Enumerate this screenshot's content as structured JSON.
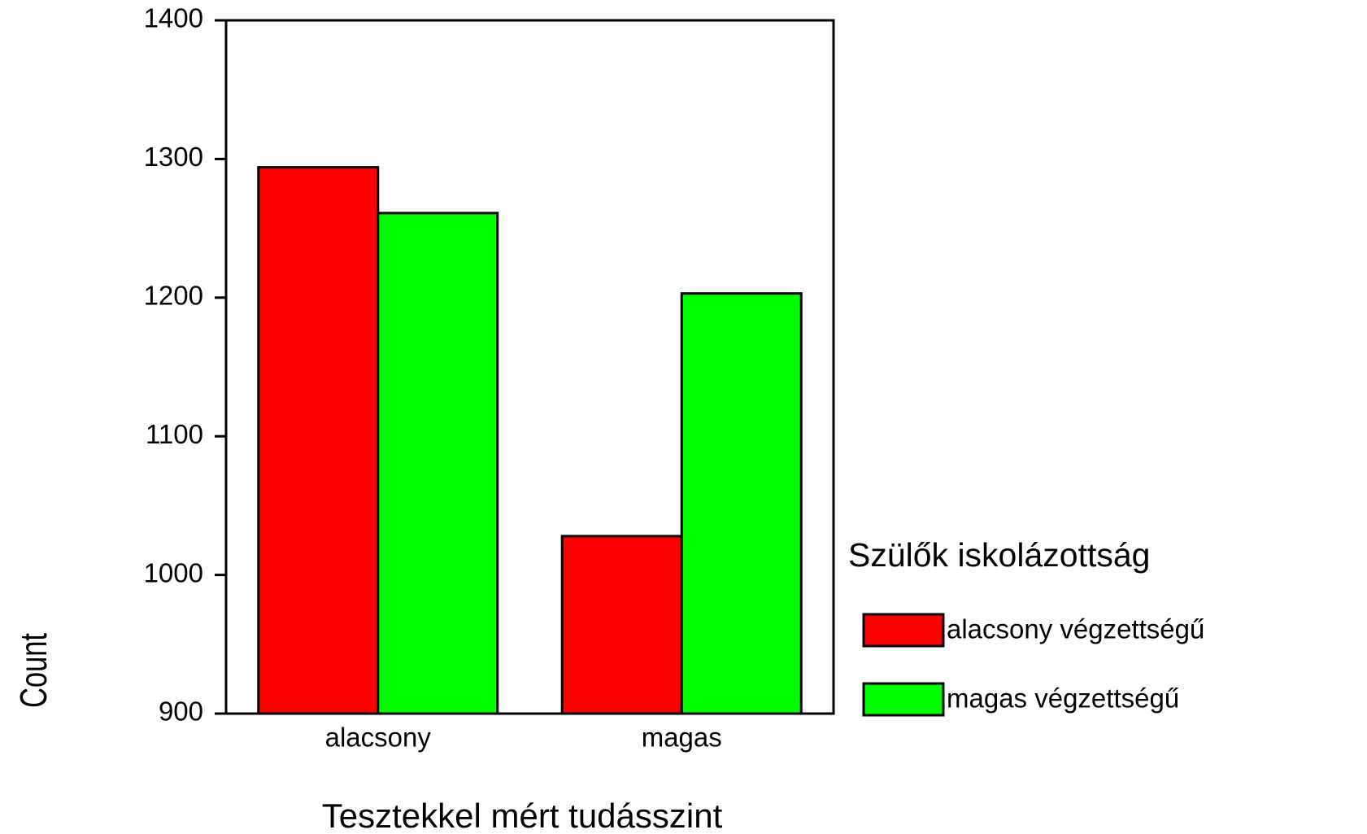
{
  "chart_data": {
    "type": "bar",
    "x_label": "Tesztekkel mért tudásszint",
    "y_label": "Count",
    "legend_title": "Szülők iskolázottság",
    "categories": [
      "alacsony",
      "magas"
    ],
    "series": [
      {
        "name": "alacsony végzettségű",
        "color": "#ff0000",
        "values": [
          1294,
          1028
        ]
      },
      {
        "name": "magas végzettségű",
        "color": "#00ff00",
        "values": [
          1261,
          1203
        ]
      }
    ],
    "ylim": [
      900,
      1400
    ],
    "yticks": [
      900,
      1000,
      1100,
      1200,
      1300,
      1400
    ],
    "legend": "right"
  }
}
